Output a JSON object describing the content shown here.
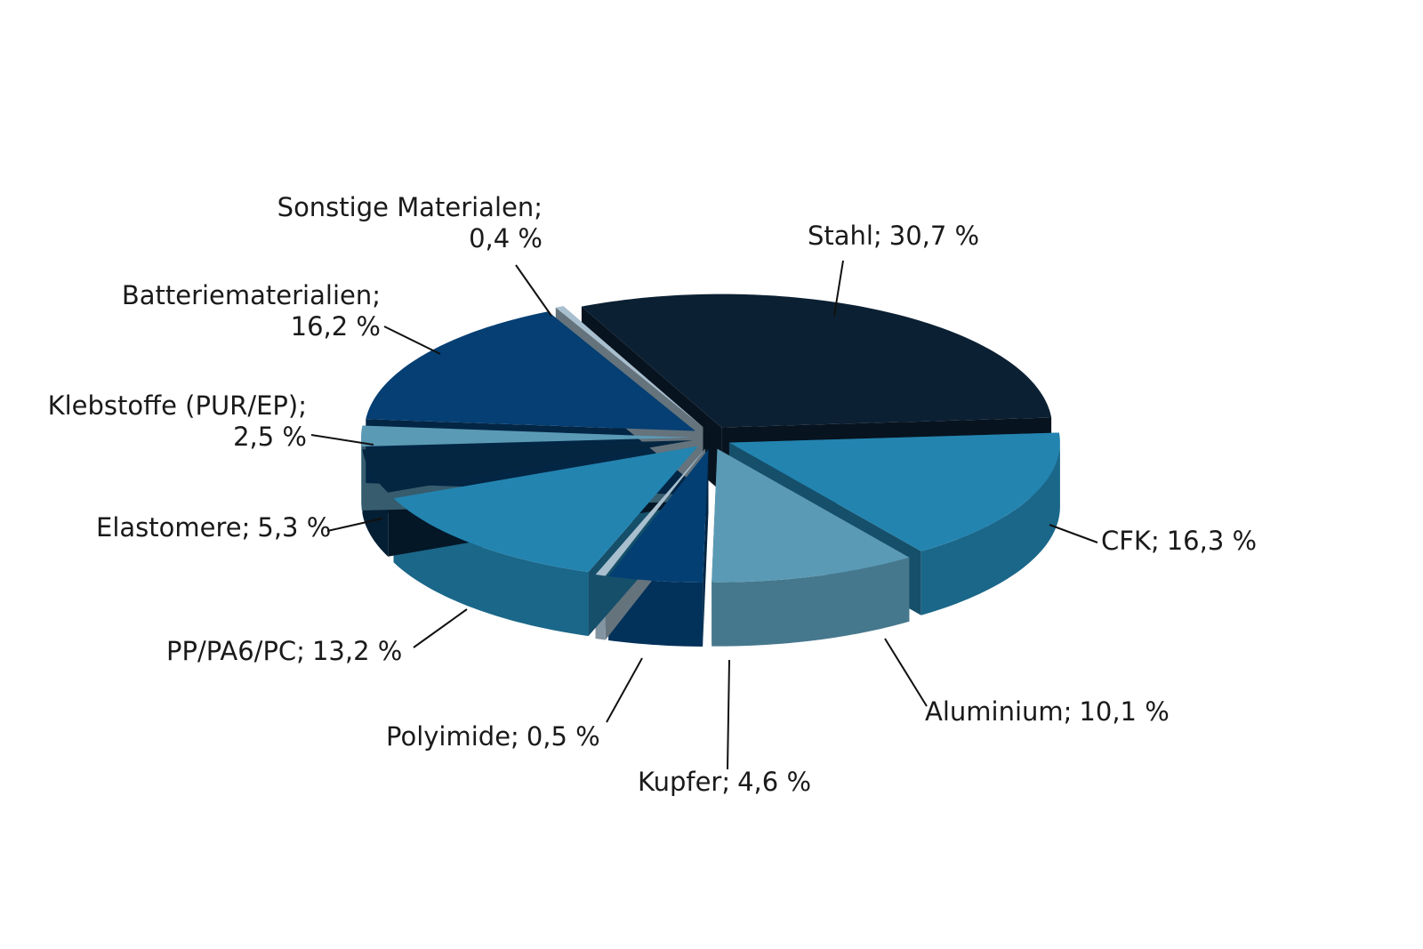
{
  "chart_data": {
    "type": "pie",
    "categories": [
      "Stahl;",
      "CFK;",
      "Aluminium;",
      "Kupfer;",
      "Polyimide;",
      "PP/PA6/PC;",
      "Elastomere;",
      "Klebstoffe (PUR/EP);",
      "Batteriematerialien;",
      "Sonstige Materialen;"
    ],
    "values": [
      30.7,
      16.3,
      10.1,
      4.6,
      0.5,
      13.2,
      5.3,
      2.5,
      16.2,
      0.4
    ],
    "value_labels": [
      "30,7 %",
      "16,3 %",
      "10,1 %",
      "4,6 %",
      "0,5 %",
      "13,2 %",
      "5,3 %",
      "2,5 %",
      "16,2 %",
      "0,4 %"
    ],
    "colors": [
      "#0c2033",
      "#2384b0",
      "#5a9ab5",
      "#033f73",
      "#a8bfcf",
      "#2384b0",
      "#052641",
      "#5a9ab5",
      "#053f73",
      "#a8bfcf"
    ]
  }
}
